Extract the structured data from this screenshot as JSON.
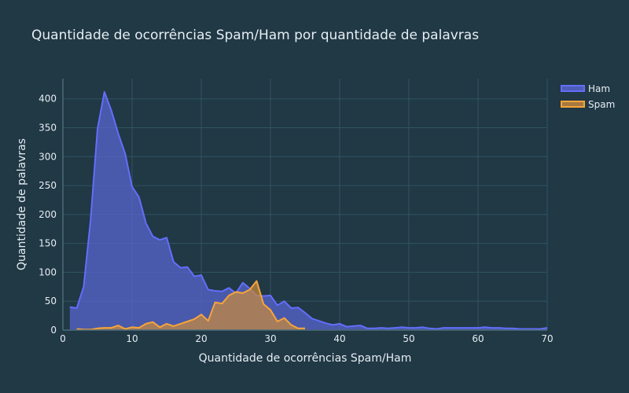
{
  "chart_data": {
    "type": "area",
    "title": "Quantidade de ocorrências Spam/Ham por quantidade de palavras",
    "xlabel": "Quantidade de ocorrências Spam/Ham",
    "ylabel": "Quantidade de palavras",
    "xlim": [
      0,
      70
    ],
    "ylim": [
      0,
      435
    ],
    "x_ticks": [
      0,
      10,
      20,
      30,
      40,
      50,
      60,
      70
    ],
    "y_ticks": [
      0,
      50,
      100,
      150,
      200,
      250,
      300,
      350,
      400
    ],
    "grid": true,
    "legend_position": "top-right",
    "colors": {
      "background": "#213845",
      "grid": "#2f5462",
      "zeroline": "#4a6b78",
      "text": "#e5eef3",
      "ham_line": "#636efa",
      "ham_fill": "#5966d4",
      "spam_line": "#f7a43a",
      "spam_fill": "#c98a3d"
    },
    "series": [
      {
        "name": "Ham",
        "color": "#636efa",
        "x": [
          1,
          2,
          3,
          4,
          5,
          6,
          7,
          8,
          9,
          10,
          11,
          12,
          13,
          14,
          15,
          16,
          17,
          18,
          19,
          20,
          21,
          22,
          23,
          24,
          25,
          26,
          27,
          28,
          29,
          30,
          31,
          32,
          33,
          34,
          35,
          36,
          37,
          38,
          39,
          40,
          41,
          42,
          43,
          44,
          45,
          46,
          47,
          48,
          49,
          50,
          51,
          52,
          53,
          54,
          55,
          56,
          57,
          58,
          59,
          60,
          61,
          62,
          63,
          64,
          65,
          66,
          67,
          68,
          69,
          70
        ],
        "values": [
          40,
          38,
          75,
          190,
          348,
          412,
          380,
          340,
          305,
          248,
          230,
          185,
          162,
          156,
          160,
          118,
          108,
          109,
          93,
          95,
          70,
          68,
          67,
          73,
          64,
          82,
          72,
          60,
          59,
          60,
          43,
          50,
          38,
          39,
          30,
          20,
          16,
          12,
          9,
          11,
          6,
          7,
          8,
          3,
          3,
          4,
          3,
          4,
          5,
          4,
          4,
          5,
          3,
          2,
          4,
          4,
          4,
          4,
          4,
          4,
          5,
          4,
          4,
          3,
          3,
          2,
          2,
          2,
          2,
          4
        ]
      },
      {
        "name": "Spam",
        "color": "#f7a43a",
        "x": [
          2,
          3,
          4,
          5,
          6,
          7,
          8,
          9,
          10,
          11,
          12,
          13,
          14,
          15,
          16,
          17,
          18,
          19,
          20,
          21,
          22,
          23,
          24,
          25,
          26,
          27,
          28,
          29,
          30,
          31,
          32,
          33,
          34,
          35
        ],
        "values": [
          2,
          1,
          1,
          3,
          4,
          4,
          8,
          2,
          5,
          4,
          11,
          14,
          5,
          11,
          7,
          11,
          15,
          19,
          27,
          16,
          48,
          46,
          60,
          66,
          64,
          70,
          85,
          45,
          35,
          15,
          21,
          9,
          3,
          3
        ]
      }
    ]
  }
}
